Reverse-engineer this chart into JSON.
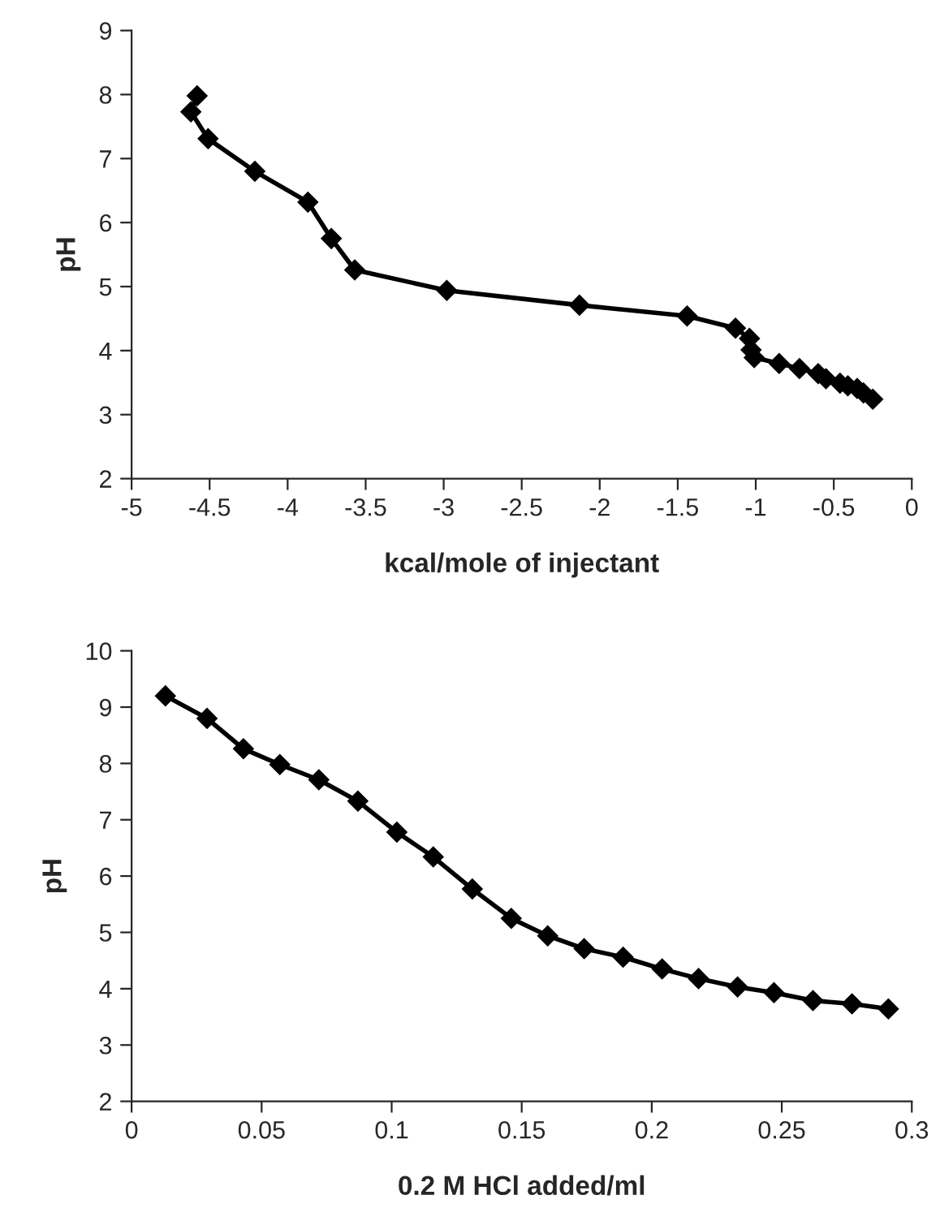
{
  "chart_data": [
    {
      "type": "line",
      "xlabel": "kcal/mole of injectant",
      "ylabel": "pH",
      "xlim": [
        -5,
        0
      ],
      "xticks": [
        -5,
        -4.5,
        -4,
        -3.5,
        -3,
        -2.5,
        -2,
        -1.5,
        -1,
        -0.5,
        0
      ],
      "ylim": [
        2,
        9
      ],
      "yticks": [
        2,
        3,
        4,
        5,
        6,
        7,
        8,
        9
      ],
      "grid": false,
      "legend": false,
      "marker": "diamond",
      "line_style": "solid",
      "series": [
        {
          "color": "#000000",
          "x": [
            -4.58,
            -4.62,
            -4.51,
            -4.21,
            -3.87,
            -3.72,
            -3.57,
            -2.98,
            -2.13,
            -1.44,
            -1.13,
            -1.04,
            -1.03,
            -1.01,
            -0.85,
            -0.72,
            -0.6,
            -0.55,
            -0.46,
            -0.41,
            -0.35,
            -0.31,
            -0.25
          ],
          "values": [
            7.98,
            7.73,
            7.31,
            6.8,
            6.32,
            5.75,
            5.26,
            4.94,
            4.71,
            4.54,
            4.35,
            4.19,
            4.01,
            3.89,
            3.8,
            3.72,
            3.64,
            3.56,
            3.49,
            3.45,
            3.41,
            3.34,
            3.24
          ]
        }
      ]
    },
    {
      "type": "line",
      "xlabel": "0.2 M HCl added/ml",
      "ylabel": "pH",
      "xlim": [
        0,
        0.3
      ],
      "xticks": [
        0,
        0.05,
        0.1,
        0.15,
        0.2,
        0.25,
        0.3
      ],
      "ylim": [
        2,
        10
      ],
      "yticks": [
        2,
        3,
        4,
        5,
        6,
        7,
        8,
        9,
        10
      ],
      "grid": false,
      "legend": false,
      "marker": "diamond",
      "line_style": "solid",
      "series": [
        {
          "color": "#000000",
          "x": [
            0.013,
            0.029,
            0.043,
            0.057,
            0.072,
            0.087,
            0.102,
            0.116,
            0.131,
            0.146,
            0.16,
            0.174,
            0.189,
            0.204,
            0.218,
            0.233,
            0.247,
            0.262,
            0.277,
            0.291
          ],
          "values": [
            9.2,
            8.8,
            8.26,
            7.98,
            7.71,
            7.33,
            6.78,
            6.34,
            5.77,
            5.25,
            4.94,
            4.71,
            4.56,
            4.35,
            4.18,
            4.03,
            3.93,
            3.79,
            3.73,
            3.64
          ]
        }
      ]
    }
  ]
}
